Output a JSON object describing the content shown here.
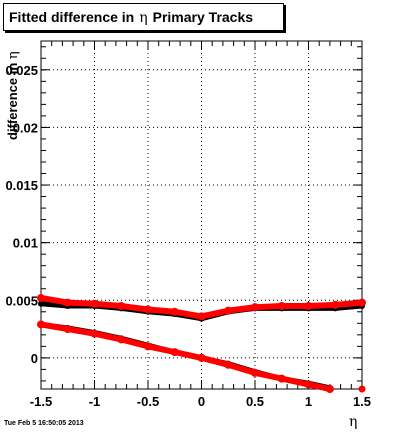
{
  "title": {
    "prefix": "Fitted difference in",
    "symbol": "η",
    "suffix": "Primary Tracks"
  },
  "datestamp": "Tue Feb  5 16:50:05 2013",
  "chart_data": {
    "type": "scatter",
    "xlabel": "η",
    "ylabel": {
      "prefix": "difference in",
      "symbol": "η"
    },
    "xlim": [
      -1.5,
      1.5
    ],
    "ylim": [
      -0.0027,
      0.0275
    ],
    "x_ticks": [
      -1.5,
      -1,
      -0.5,
      0,
      0.5,
      1,
      1.5
    ],
    "x_tick_labels": [
      "-1.5",
      "-1",
      "-0.5",
      "0",
      "0.5",
      "1",
      "1.5"
    ],
    "y_ticks": [
      0,
      0.005,
      0.01,
      0.015,
      0.02,
      0.025
    ],
    "y_tick_labels": [
      "0",
      "0.005",
      "0.01",
      "0.015",
      "0.02",
      "0.025"
    ],
    "grid": true,
    "series": [
      {
        "color": "#000000",
        "x": [
          -1.5,
          -1.25,
          -1.0,
          -0.75,
          -0.5,
          -0.25,
          0.0,
          0.25,
          0.5,
          0.75,
          1.0,
          1.25,
          1.5
        ],
        "y": [
          0.0047,
          0.0045,
          0.0045,
          0.0043,
          0.004,
          0.0038,
          0.0034,
          0.004,
          0.0043,
          0.0043,
          0.0043,
          0.0043,
          0.0045
        ]
      },
      {
        "color": "#ff0000",
        "x": [
          -1.5,
          -1.25,
          -1.0,
          -0.75,
          -0.5,
          -0.25,
          0.0,
          0.25,
          0.5,
          0.75,
          1.0,
          1.25,
          1.5
        ],
        "y": [
          0.0052,
          0.0048,
          0.0047,
          0.0045,
          0.0042,
          0.004,
          0.0036,
          0.0041,
          0.0044,
          0.0045,
          0.0045,
          0.0046,
          0.0048
        ]
      },
      {
        "color": "#000000",
        "x": [
          -1.5,
          -1.25,
          -1.0,
          -0.75,
          -0.5,
          -0.25,
          0.0,
          0.25,
          0.5,
          0.75,
          1.0,
          1.2
        ],
        "y": [
          0.0029,
          0.0026,
          0.0022,
          0.0017,
          0.0011,
          0.0005,
          0.0,
          -0.0005,
          -0.0012,
          -0.0018,
          -0.0022,
          -0.0026
        ]
      },
      {
        "color": "#ff0000",
        "x": [
          -1.5,
          -1.25,
          -1.0,
          -0.75,
          -0.5,
          -0.25,
          0.0,
          0.25,
          0.5,
          0.75,
          1.0,
          1.2
        ],
        "y": [
          0.0029,
          0.0025,
          0.0021,
          0.0016,
          0.001,
          0.0005,
          0.0,
          -0.0006,
          -0.0013,
          -0.0018,
          -0.0023,
          -0.0027
        ]
      }
    ]
  }
}
